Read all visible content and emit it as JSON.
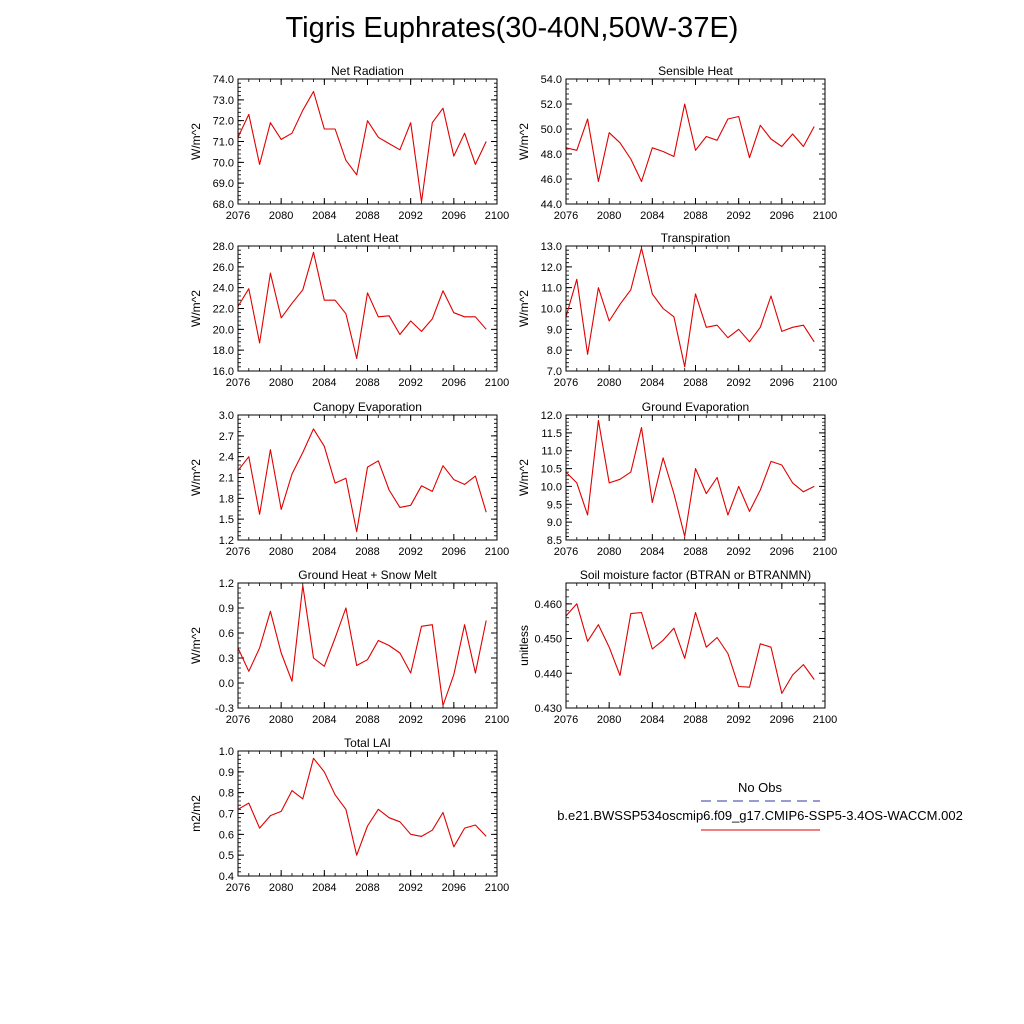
{
  "title": "Tigris Euphrates(30-40N,50W-37E)",
  "legend": {
    "entries": [
      {
        "label": "No Obs",
        "color": "#3333aa",
        "dash": true
      },
      {
        "label": "b.e21.BWSSP534oscmip6.f09_g17.CMIP6-SSP5-3.4OS-WACCM.002",
        "color": "#e00000",
        "dash": false
      }
    ]
  },
  "chart_data": [
    {
      "type": "line",
      "title": "Net Radiation",
      "ylabel": "W/m^2",
      "xlim": [
        2076,
        2100
      ],
      "ylim": [
        68.0,
        74.0
      ],
      "xticks": [
        "2076",
        "2080",
        "2084",
        "2088",
        "2092",
        "2096",
        "2100"
      ],
      "yticks": [
        "68.0",
        "69.0",
        "70.0",
        "71.0",
        "72.0",
        "73.0",
        "74.0"
      ],
      "ytick_values": [
        68,
        69,
        70,
        71,
        72,
        73,
        74
      ],
      "series": [
        {
          "color": "#e00000",
          "x": [
            2076,
            2077,
            2078,
            2079,
            2080,
            2081,
            2082,
            2083,
            2084,
            2085,
            2086,
            2087,
            2088,
            2089,
            2090,
            2091,
            2092,
            2093,
            2094,
            2095,
            2096,
            2097,
            2098,
            2099
          ],
          "values": [
            71.2,
            72.3,
            69.9,
            71.9,
            71.1,
            71.4,
            72.5,
            73.4,
            71.6,
            71.6,
            70.1,
            69.4,
            72.0,
            71.2,
            70.9,
            70.6,
            71.9,
            68.1,
            71.9,
            72.6,
            70.3,
            71.4,
            69.9,
            71.0
          ]
        }
      ]
    },
    {
      "type": "line",
      "title": "Sensible Heat",
      "ylabel": "W/m^2",
      "xlim": [
        2076,
        2100
      ],
      "ylim": [
        44.0,
        54.0
      ],
      "xticks": [
        "2076",
        "2080",
        "2084",
        "2088",
        "2092",
        "2096",
        "2100"
      ],
      "yticks": [
        "44.0",
        "46.0",
        "48.0",
        "50.0",
        "52.0",
        "54.0"
      ],
      "ytick_values": [
        44,
        46,
        48,
        50,
        52,
        54
      ],
      "series": [
        {
          "color": "#e00000",
          "x": [
            2076,
            2077,
            2078,
            2079,
            2080,
            2081,
            2082,
            2083,
            2084,
            2085,
            2086,
            2087,
            2088,
            2089,
            2090,
            2091,
            2092,
            2093,
            2094,
            2095,
            2096,
            2097,
            2098,
            2099
          ],
          "values": [
            48.5,
            48.3,
            50.8,
            45.8,
            49.7,
            48.9,
            47.6,
            45.8,
            48.5,
            48.2,
            47.8,
            52.0,
            48.3,
            49.4,
            49.1,
            50.8,
            51.0,
            47.7,
            50.3,
            49.2,
            48.6,
            49.6,
            48.6,
            50.2
          ]
        }
      ]
    },
    {
      "type": "line",
      "title": "Latent Heat",
      "ylabel": "W/m^2",
      "xlim": [
        2076,
        2100
      ],
      "ylim": [
        16.0,
        28.0
      ],
      "xticks": [
        "2076",
        "2080",
        "2084",
        "2088",
        "2092",
        "2096",
        "2100"
      ],
      "yticks": [
        "16.0",
        "18.0",
        "20.0",
        "22.0",
        "24.0",
        "26.0",
        "28.0"
      ],
      "ytick_values": [
        16,
        18,
        20,
        22,
        24,
        26,
        28
      ],
      "series": [
        {
          "color": "#e00000",
          "x": [
            2076,
            2077,
            2078,
            2079,
            2080,
            2081,
            2082,
            2083,
            2084,
            2085,
            2086,
            2087,
            2088,
            2089,
            2090,
            2091,
            2092,
            2093,
            2094,
            2095,
            2096,
            2097,
            2098,
            2099
          ],
          "values": [
            22.2,
            23.9,
            18.7,
            25.4,
            21.1,
            22.5,
            23.8,
            27.4,
            22.8,
            22.8,
            21.5,
            17.2,
            23.5,
            21.2,
            21.3,
            19.5,
            20.8,
            19.8,
            21.0,
            23.7,
            21.6,
            21.2,
            21.2,
            20.0
          ]
        }
      ]
    },
    {
      "type": "line",
      "title": "Transpiration",
      "ylabel": "W/m^2",
      "xlim": [
        2076,
        2100
      ],
      "ylim": [
        7.0,
        13.0
      ],
      "xticks": [
        "2076",
        "2080",
        "2084",
        "2088",
        "2092",
        "2096",
        "2100"
      ],
      "yticks": [
        "7.0",
        "8.0",
        "9.0",
        "10.0",
        "11.0",
        "12.0",
        "13.0"
      ],
      "ytick_values": [
        7,
        8,
        9,
        10,
        11,
        12,
        13
      ],
      "series": [
        {
          "color": "#e00000",
          "x": [
            2076,
            2077,
            2078,
            2079,
            2080,
            2081,
            2082,
            2083,
            2084,
            2085,
            2086,
            2087,
            2088,
            2089,
            2090,
            2091,
            2092,
            2093,
            2094,
            2095,
            2096,
            2097,
            2098,
            2099
          ],
          "values": [
            9.6,
            11.4,
            7.8,
            11.0,
            9.4,
            10.2,
            10.9,
            12.9,
            10.7,
            10.0,
            9.6,
            7.2,
            10.7,
            9.1,
            9.2,
            8.6,
            9.0,
            8.4,
            9.1,
            10.6,
            8.9,
            9.1,
            9.2,
            8.4
          ]
        }
      ]
    },
    {
      "type": "line",
      "title": "Canopy Evaporation",
      "ylabel": "W/m^2",
      "xlim": [
        2076,
        2100
      ],
      "ylim": [
        1.2,
        3.0
      ],
      "xticks": [
        "2076",
        "2080",
        "2084",
        "2088",
        "2092",
        "2096",
        "2100"
      ],
      "yticks": [
        "1.2",
        "1.5",
        "1.8",
        "2.1",
        "2.4",
        "2.7",
        "3.0"
      ],
      "ytick_values": [
        1.2,
        1.5,
        1.8,
        2.1,
        2.4,
        2.7,
        3.0
      ],
      "series": [
        {
          "color": "#e00000",
          "x": [
            2076,
            2077,
            2078,
            2079,
            2080,
            2081,
            2082,
            2083,
            2084,
            2085,
            2086,
            2087,
            2088,
            2089,
            2090,
            2091,
            2092,
            2093,
            2094,
            2095,
            2096,
            2097,
            2098,
            2099
          ],
          "values": [
            2.2,
            2.4,
            1.57,
            2.5,
            1.64,
            2.15,
            2.46,
            2.8,
            2.55,
            2.02,
            2.09,
            1.32,
            2.25,
            2.34,
            1.92,
            1.67,
            1.7,
            1.98,
            1.9,
            2.27,
            2.07,
            2.0,
            2.12,
            1.6
          ]
        }
      ]
    },
    {
      "type": "line",
      "title": "Ground Evaporation",
      "ylabel": "W/m^2",
      "xlim": [
        2076,
        2100
      ],
      "ylim": [
        8.5,
        12.0
      ],
      "xticks": [
        "2076",
        "2080",
        "2084",
        "2088",
        "2092",
        "2096",
        "2100"
      ],
      "yticks": [
        "8.5",
        "9.0",
        "9.5",
        "10.0",
        "10.5",
        "11.0",
        "11.5",
        "12.0"
      ],
      "ytick_values": [
        8.5,
        9.0,
        9.5,
        10.0,
        10.5,
        11.0,
        11.5,
        12.0
      ],
      "series": [
        {
          "color": "#e00000",
          "x": [
            2076,
            2077,
            2078,
            2079,
            2080,
            2081,
            2082,
            2083,
            2084,
            2085,
            2086,
            2087,
            2088,
            2089,
            2090,
            2091,
            2092,
            2093,
            2094,
            2095,
            2096,
            2097,
            2098,
            2099
          ],
          "values": [
            10.4,
            10.1,
            9.2,
            11.85,
            10.1,
            10.2,
            10.4,
            11.65,
            9.55,
            10.8,
            9.8,
            8.6,
            10.5,
            9.8,
            10.25,
            9.2,
            10.0,
            9.3,
            9.9,
            10.7,
            10.6,
            10.1,
            9.85,
            10.0
          ]
        }
      ]
    },
    {
      "type": "line",
      "title": "Ground Heat + Snow Melt",
      "ylabel": "W/m^2",
      "xlim": [
        2076,
        2100
      ],
      "ylim": [
        -0.3,
        1.2
      ],
      "xticks": [
        "2076",
        "2080",
        "2084",
        "2088",
        "2092",
        "2096",
        "2100"
      ],
      "yticks": [
        "-0.3",
        "0.0",
        "0.3",
        "0.6",
        "0.9",
        "1.2"
      ],
      "ytick_values": [
        -0.3,
        0.0,
        0.3,
        0.6,
        0.9,
        1.2
      ],
      "series": [
        {
          "color": "#e00000",
          "x": [
            2076,
            2077,
            2078,
            2079,
            2080,
            2081,
            2082,
            2083,
            2084,
            2085,
            2086,
            2087,
            2088,
            2089,
            2090,
            2091,
            2092,
            2093,
            2094,
            2095,
            2096,
            2097,
            2098,
            2099
          ],
          "values": [
            0.42,
            0.14,
            0.42,
            0.86,
            0.36,
            0.02,
            1.17,
            0.3,
            0.2,
            0.54,
            0.9,
            0.21,
            0.28,
            0.51,
            0.45,
            0.36,
            0.12,
            0.68,
            0.7,
            -0.27,
            0.1,
            0.7,
            0.12,
            0.75
          ]
        }
      ]
    },
    {
      "type": "line",
      "title": "Soil moisture factor (BTRAN or BTRANMN)",
      "ylabel": "unitless",
      "xlim": [
        2076,
        2100
      ],
      "ylim": [
        0.43,
        0.466
      ],
      "xticks": [
        "2076",
        "2080",
        "2084",
        "2088",
        "2092",
        "2096",
        "2100"
      ],
      "yticks": [
        "0.430",
        "0.440",
        "0.450",
        "0.460"
      ],
      "ytick_values": [
        0.43,
        0.44,
        0.45,
        0.46
      ],
      "series": [
        {
          "color": "#e00000",
          "x": [
            2076,
            2077,
            2078,
            2079,
            2080,
            2081,
            2082,
            2083,
            2084,
            2085,
            2086,
            2087,
            2088,
            2089,
            2090,
            2091,
            2092,
            2093,
            2094,
            2095,
            2096,
            2097,
            2098,
            2099
          ],
          "values": [
            0.4565,
            0.46,
            0.4492,
            0.454,
            0.4475,
            0.4394,
            0.4572,
            0.4575,
            0.447,
            0.4495,
            0.453,
            0.4443,
            0.4575,
            0.4475,
            0.4503,
            0.4457,
            0.4362,
            0.436,
            0.4485,
            0.4475,
            0.4342,
            0.4395,
            0.4425,
            0.4382
          ]
        }
      ]
    },
    {
      "type": "line",
      "title": "Total LAI",
      "ylabel": "m2/m2",
      "xlim": [
        2076,
        2100
      ],
      "ylim": [
        0.4,
        1.0
      ],
      "xticks": [
        "2076",
        "2080",
        "2084",
        "2088",
        "2092",
        "2096",
        "2100"
      ],
      "yticks": [
        "0.4",
        "0.5",
        "0.6",
        "0.7",
        "0.8",
        "0.9",
        "1.0"
      ],
      "ytick_values": [
        0.4,
        0.5,
        0.6,
        0.7,
        0.8,
        0.9,
        1.0
      ],
      "series": [
        {
          "color": "#e00000",
          "x": [
            2076,
            2077,
            2078,
            2079,
            2080,
            2081,
            2082,
            2083,
            2084,
            2085,
            2086,
            2087,
            2088,
            2089,
            2090,
            2091,
            2092,
            2093,
            2094,
            2095,
            2096,
            2097,
            2098,
            2099
          ],
          "values": [
            0.72,
            0.75,
            0.63,
            0.69,
            0.71,
            0.81,
            0.77,
            0.965,
            0.9,
            0.79,
            0.72,
            0.5,
            0.64,
            0.72,
            0.68,
            0.66,
            0.6,
            0.59,
            0.62,
            0.705,
            0.54,
            0.63,
            0.645,
            0.59
          ]
        }
      ]
    }
  ]
}
